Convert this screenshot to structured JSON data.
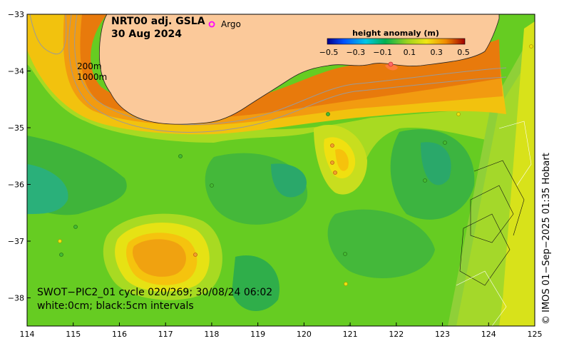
{
  "title": {
    "line1": "NRT00 adj. GSLA",
    "line2": "30 Aug 2024"
  },
  "argo_label": "Argo",
  "colorbar": {
    "title": "height anomaly (m)",
    "ticks": [
      "−0.5",
      "−0.3",
      "−0.1",
      "0.1",
      "0.3",
      "0.5"
    ]
  },
  "isobaths": {
    "a": "200m",
    "b": "1000m"
  },
  "info": {
    "line1": "SWOT−PIC2_01 cycle 020/269; 30/08/24 06:02",
    "line2": "white:0cm; black:5cm intervals"
  },
  "credit": "© IMOS 01−Sep−2025 01:35 Hobart",
  "axes": {
    "x_ticks": [
      "114",
      "115",
      "116",
      "117",
      "118",
      "119",
      "120",
      "121",
      "122",
      "123",
      "124",
      "125"
    ],
    "y_ticks": [
      "−33",
      "−34",
      "−35",
      "−36",
      "−37",
      "−38"
    ]
  },
  "colors": {
    "land": "#fbc99a",
    "argo": "#ff00ff",
    "coast": "#222222"
  }
}
